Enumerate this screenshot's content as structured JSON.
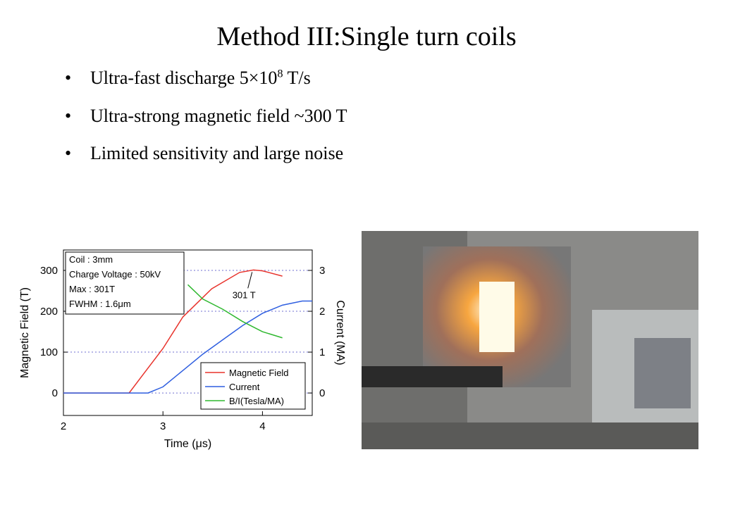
{
  "title": "Method III:Single turn coils",
  "bullets": [
    {
      "text": "Ultra-fast discharge 5×10",
      "sup": "8",
      "tail": " T/s"
    },
    {
      "text": "Ultra-strong magnetic field ~300 T"
    },
    {
      "text": "Limited sensitivity and large noise"
    }
  ],
  "chart_data": {
    "type": "line",
    "xlabel": "Time (μs)",
    "ylabel": "Magnetic Field (T)",
    "y2label": "Current (MA)",
    "xlim": [
      2,
      4.5
    ],
    "xticks": [
      2,
      3,
      4
    ],
    "ylim": [
      -55,
      350
    ],
    "yticks": [
      0,
      100,
      200,
      300
    ],
    "y2lim": [
      -0.55,
      3.5
    ],
    "y2ticks": [
      0,
      1,
      2,
      3
    ],
    "grid": true,
    "grid_color": "#6f6fd0",
    "info_box": [
      "Coil : 3mm",
      "Charge Voltage : 50kV",
      "Max : 301T",
      "FWHM : 1.6μm"
    ],
    "annotation": {
      "text": "301 T",
      "x": 3.91,
      "y": 301
    },
    "legend": "lower right",
    "series": [
      {
        "name": "Magnetic Field",
        "color": "#e8332c",
        "x": [
          2,
          2.66,
          2.8,
          3.0,
          3.2,
          3.49,
          3.77,
          3.91,
          4.0,
          4.2
        ],
        "values": [
          0,
          0,
          45,
          109,
          186,
          255,
          295,
          301,
          299,
          286
        ]
      },
      {
        "name": "Current",
        "color": "#2f5fe0",
        "axis": "y2",
        "x": [
          2,
          2.85,
          3.0,
          3.2,
          3.4,
          3.6,
          3.8,
          4.0,
          4.2,
          4.4,
          4.5
        ],
        "values": [
          0,
          0,
          0.15,
          0.55,
          0.95,
          1.3,
          1.65,
          1.95,
          2.15,
          2.25,
          2.25
        ]
      },
      {
        "name": "B/I(Tesla/MA)",
        "color": "#2fb82f",
        "x": [
          3.25,
          3.4,
          3.6,
          3.8,
          4.0,
          4.2
        ],
        "values": [
          265,
          230,
          205,
          175,
          150,
          135
        ]
      }
    ]
  }
}
